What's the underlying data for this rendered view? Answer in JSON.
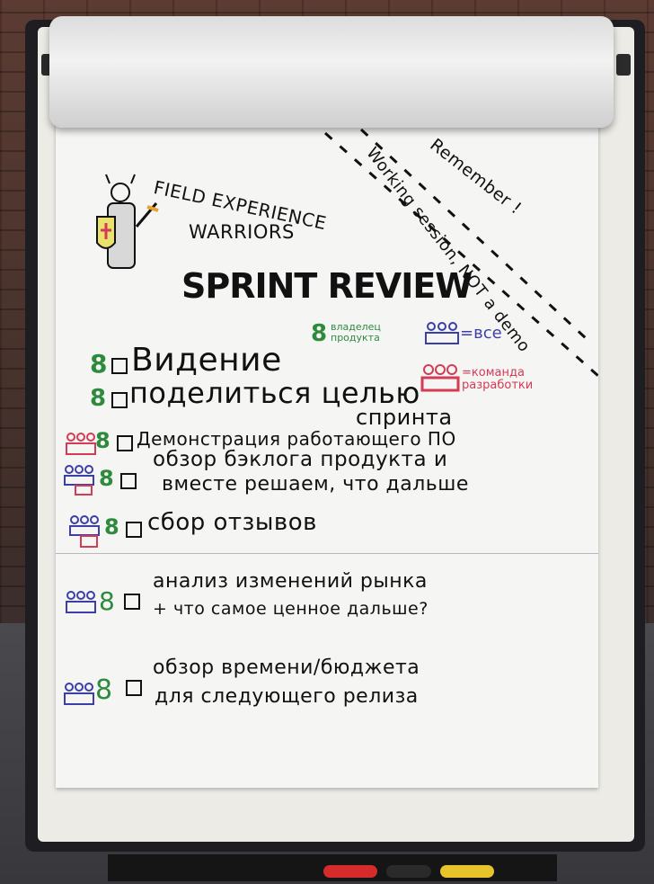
{
  "header": {
    "field_experience": "FIELD EXPERIENCE",
    "warriors": "WARRIORS",
    "title": "SPRINT REVIEW"
  },
  "banner": {
    "remember": "Remember !",
    "working_session": "Working session, NOT a demo"
  },
  "legend": {
    "product_owner": "владелец продукта",
    "everyone": "=все",
    "dev_team": "=команда разработки"
  },
  "agenda": [
    {
      "line1": "Видение",
      "line2": ""
    },
    {
      "line1": "поделиться целью",
      "line2": "спринта"
    },
    {
      "line1": "Демонстрация работающего ПО",
      "line2": ""
    },
    {
      "line1": "обзор бэклога продукта и",
      "line2": "вместе решаем, что дальше"
    },
    {
      "line1": "сбор отзывов",
      "line2": ""
    },
    {
      "line1": "анализ изменений рынка",
      "line2": "+ что самое ценное дальше?"
    },
    {
      "line1": "обзор времени/бюджета",
      "line2": "для следующего релиза"
    }
  ],
  "colors": {
    "green_marker": "#2e8b3e",
    "blue_marker": "#3d3fa8",
    "red_marker": "#d43b55",
    "paper": "#f5f5f4"
  }
}
